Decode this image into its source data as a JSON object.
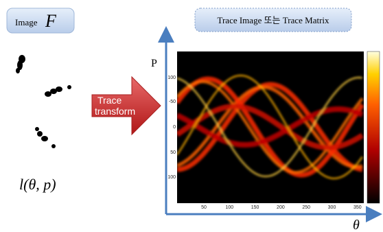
{
  "image_label": {
    "prefix": "Image",
    "symbol": "F"
  },
  "line_label": "l(θ, p)",
  "arrow_label": [
    "Trace",
    "transform"
  ],
  "title": "Trace Image 또는 Trace Matrix",
  "axis": {
    "y": "P",
    "x": "θ"
  },
  "heatmap": {
    "yticks": [
      "100",
      "-50",
      "0",
      "50",
      "100"
    ],
    "xticks": [
      "50",
      "100",
      "150",
      "200",
      "250",
      "300",
      "350"
    ]
  }
}
